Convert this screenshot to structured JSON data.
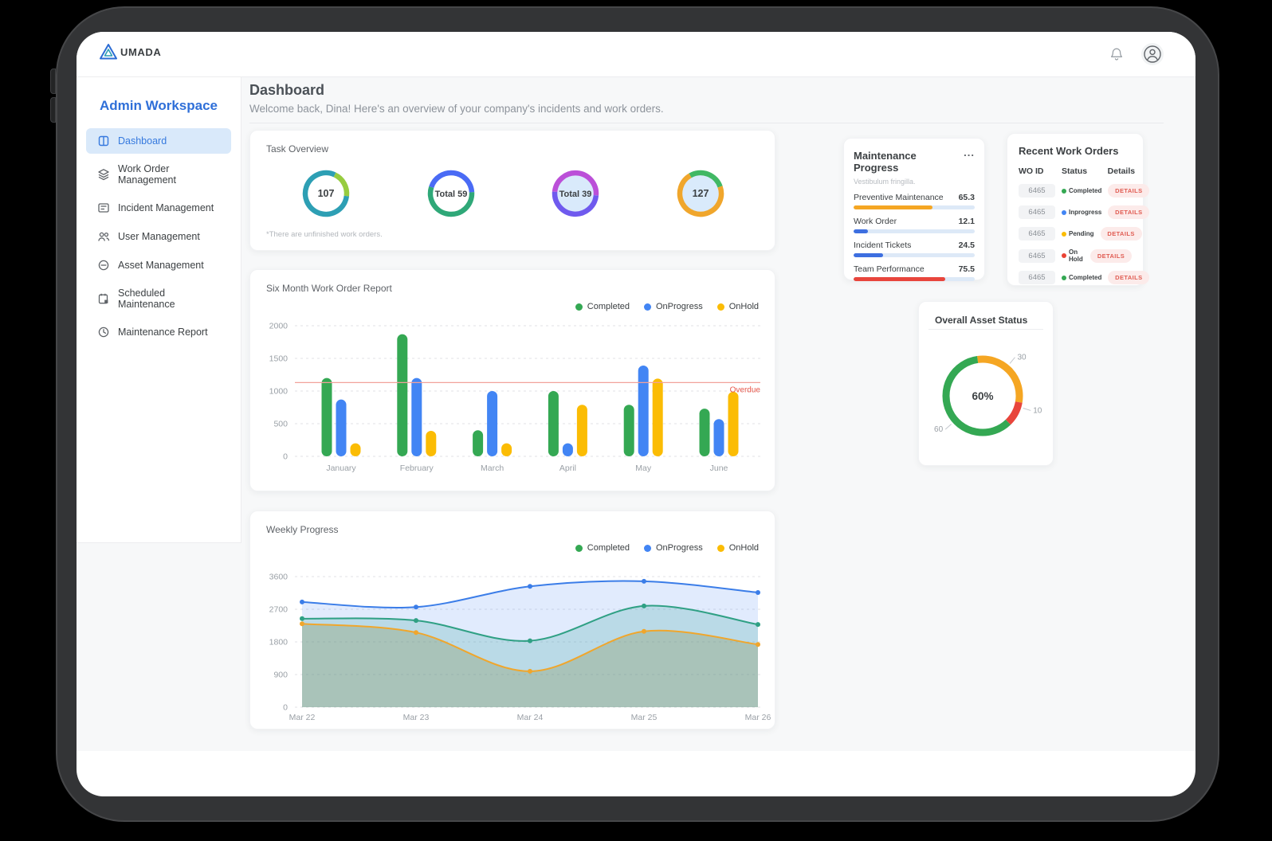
{
  "brand": {
    "name": "UMADA"
  },
  "topbar": {
    "icons": [
      "bell-icon",
      "avatar-icon"
    ]
  },
  "sidebar": {
    "title": "Admin Workspace",
    "items": [
      {
        "label": "Dashboard",
        "icon": "dashboard",
        "active": true
      },
      {
        "label": "Work Order Management",
        "icon": "work-order",
        "active": false
      },
      {
        "label": "Incident Management",
        "icon": "incident",
        "active": false
      },
      {
        "label": "User Management",
        "icon": "users",
        "active": false
      },
      {
        "label": "Asset Management",
        "icon": "asset",
        "active": false
      },
      {
        "label": "Scheduled Maintenance",
        "icon": "calendar",
        "active": false
      },
      {
        "label": "Maintenance Report",
        "icon": "report",
        "active": false
      }
    ]
  },
  "header": {
    "title": "Dashboard",
    "subtitle": "Welcome back, Dina! Here's an overview of your company's incidents and work orders."
  },
  "task_overview": {
    "title": "Task Overview",
    "footnote": "*There are unfinished work orders.",
    "donuts": [
      {
        "label": "107",
        "center_fill": "#ffffff",
        "start": 25,
        "segments": [
          {
            "color": "#97cc3f",
            "value": 20
          },
          {
            "color": "#2d9fb4",
            "value": 80
          }
        ]
      },
      {
        "label": "Total 59",
        "center_fill": "#ffffff",
        "start": 288,
        "segments": [
          {
            "color": "#4a6bf5",
            "value": 44
          },
          {
            "color": "#2fa878",
            "value": 56
          }
        ]
      },
      {
        "label": "Total 39",
        "center_fill": "#d9eafb",
        "start": 275,
        "segments": [
          {
            "color": "#bb4fd8",
            "value": 50
          },
          {
            "color": "#6f5aee",
            "value": 50
          }
        ]
      },
      {
        "label": "127",
        "center_fill": "#d9eafb",
        "start": 330,
        "segments": [
          {
            "color": "#41b864",
            "value": 28
          },
          {
            "color": "#f0a62c",
            "value": 72
          }
        ]
      }
    ]
  },
  "maintenance_progress": {
    "title": "Maintenance Progress",
    "menu": "...",
    "subtitle": "Vestibulum fringilla.",
    "rows": [
      {
        "label": "Preventive Maintenance",
        "value": "65.3",
        "percent": 65.3,
        "color": "#f5a623"
      },
      {
        "label": "Work Order",
        "value": "12.1",
        "percent": 12.1,
        "color": "#3d6fe0"
      },
      {
        "label": "Incident Tickets",
        "value": "24.5",
        "percent": 24.5,
        "color": "#3d6fe0"
      },
      {
        "label": "Team Performance",
        "value": "75.5",
        "percent": 75.5,
        "color": "#e8453c"
      }
    ]
  },
  "recent_work_orders": {
    "title": "Recent Work Orders",
    "columns": [
      "WO ID",
      "Status",
      "Details"
    ],
    "details_label": "DETAILS",
    "rows": [
      {
        "id": "6465",
        "status": "Completed",
        "status_color": "#34a853"
      },
      {
        "id": "6465",
        "status": "Inprogress",
        "status_color": "#4285f4"
      },
      {
        "id": "6465",
        "status": "Pending",
        "status_color": "#fbbc04"
      },
      {
        "id": "6465",
        "status": "On Hold",
        "status_color": "#ea4335"
      },
      {
        "id": "6465",
        "status": "Completed",
        "status_color": "#34a853"
      }
    ]
  },
  "asset_status": {
    "title": "Overall Asset Status",
    "center_label": "60%",
    "start": 352,
    "segments": [
      {
        "label": "30",
        "value": 30,
        "color": "#f5a623",
        "label_angle": 40
      },
      {
        "label": "10",
        "value": 10,
        "color": "#e8453c",
        "label_angle": 107
      },
      {
        "label": "60",
        "value": 60,
        "color": "#34a853",
        "label_angle": 228
      }
    ]
  },
  "chart_data": [
    {
      "id": "six_month",
      "type": "bar",
      "title": "Six Month Work Order Report",
      "categories": [
        "January",
        "February",
        "March",
        "April",
        "May",
        "June"
      ],
      "series": [
        {
          "name": "Completed",
          "color": "#34a853",
          "values": [
            1200,
            1870,
            400,
            1000,
            790,
            730
          ]
        },
        {
          "name": "OnProgress",
          "color": "#4285f4",
          "values": [
            870,
            1200,
            1000,
            200,
            1390,
            570
          ]
        },
        {
          "name": "OnHold",
          "color": "#fbbc04",
          "values": [
            200,
            390,
            200,
            790,
            1190,
            990
          ]
        }
      ],
      "ylim": [
        0,
        2000
      ],
      "yticks": [
        0,
        500,
        1000,
        1500,
        2000
      ],
      "annotation": {
        "label": "Overdue",
        "value": 1130,
        "line_color": "#f2a19a",
        "text_color": "#e8574a"
      },
      "legend": [
        {
          "label": "Completed",
          "color": "#34a853"
        },
        {
          "label": "OnProgress",
          "color": "#4285f4"
        },
        {
          "label": "OnHold",
          "color": "#fbbc04"
        }
      ],
      "legend_position": "top-right",
      "grid": true
    },
    {
      "id": "weekly",
      "type": "area",
      "title": "Weekly Progress",
      "categories": [
        "Mar 22",
        "Mar 23",
        "Mar 24",
        "Mar 25",
        "Mar 26"
      ],
      "series": [
        {
          "name": "OnProgress",
          "color": "#3b7de8",
          "fill": "rgba(66,133,244,0.16)",
          "values": [
            2900,
            2760,
            3330,
            3470,
            3160
          ]
        },
        {
          "name": "Completed",
          "color": "#2fa084",
          "fill": "rgba(32,150,143,0.20)",
          "values": [
            2440,
            2390,
            1830,
            2790,
            2280
          ]
        },
        {
          "name": "OnHold",
          "color": "#f0a62c",
          "fill": "rgba(141,158,111,0.38)",
          "values": [
            2300,
            2060,
            990,
            2090,
            1730
          ]
        }
      ],
      "ylim": [
        0,
        3600
      ],
      "yticks": [
        0,
        900,
        1800,
        2700,
        3600
      ],
      "legend": [
        {
          "label": "Completed",
          "color": "#34a853"
        },
        {
          "label": "OnProgress",
          "color": "#4285f4"
        },
        {
          "label": "OnHold",
          "color": "#fbbc04"
        }
      ],
      "legend_position": "top-right",
      "grid": true
    }
  ]
}
